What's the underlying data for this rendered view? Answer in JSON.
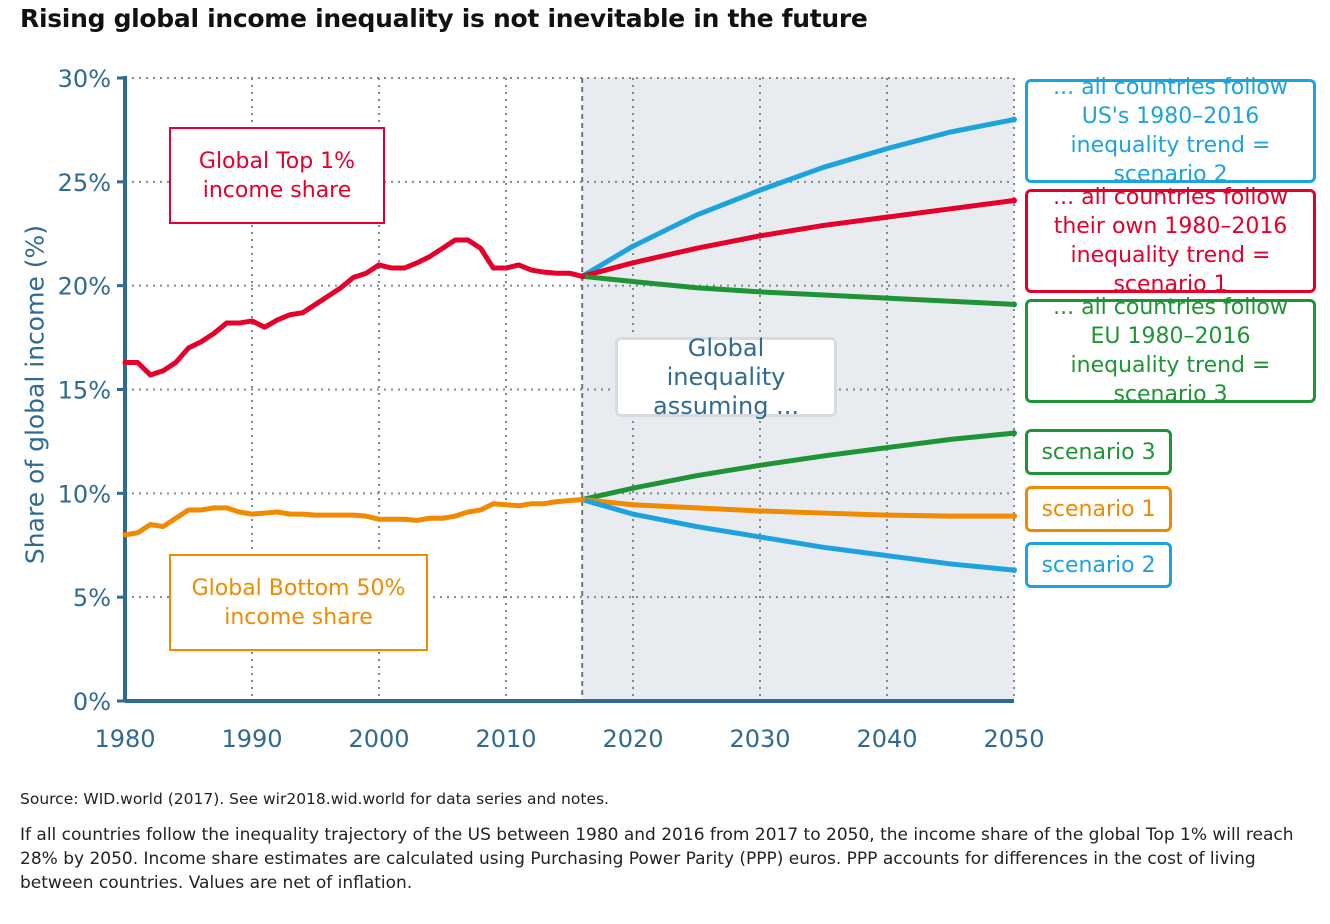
{
  "title": "Rising global income inequality is not inevitable in the future",
  "source": "Source: WID.world (2017). See wir2018.wid.world for data series and notes.",
  "note": "If all countries follow the inequality trajectory of the US between 1980 and 2016 from 2017 to 2050, the  income share of the global Top 1% will reach 28% by 2050. Income share estimates are calculated using Purchasing Power Parity (PPP) euros. PPP accounts for differences in the cost of living between countries. Values are net of inflation.",
  "labels": {
    "top1": "Global Top 1% income share",
    "bottom50": "Global Bottom 50% income share",
    "assuming": "Global inequality assuming ...",
    "us": "... all countries follow US's 1980–2016 inequality trend = scenario 2",
    "own": "... all countries follow their own 1980–2016 inequality trend = scenario 1",
    "eu": "... all countries follow EU 1980–2016 inequality trend = scenario 3",
    "s3": "scenario 3",
    "s1": "scenario 1",
    "s2": "scenario 2"
  },
  "chart_data": {
    "type": "line",
    "ylabel": "Share of global income (%)",
    "xlim": [
      1980,
      2050
    ],
    "ylim": [
      0,
      30
    ],
    "xticks": [
      "1980",
      "1990",
      "2000",
      "2010",
      "2020",
      "2030",
      "2040",
      "2050"
    ],
    "yticks": [
      "0%",
      "5%",
      "10%",
      "15%",
      "20%",
      "25%",
      "30%"
    ],
    "grid": true,
    "projection_shaded_from": 2016,
    "colors": {
      "top1": "#e4002b",
      "bottom50": "#f08a00",
      "scenario2": "#1ca3de",
      "scenario1": "#e4002b",
      "scenario3": "#1f9436",
      "axis": "#2f6a92",
      "shade": "#e8ebef"
    },
    "historical_years": [
      1980,
      1981,
      1982,
      1983,
      1984,
      1985,
      1986,
      1987,
      1988,
      1989,
      1990,
      1991,
      1992,
      1993,
      1994,
      1995,
      1996,
      1997,
      1998,
      1999,
      2000,
      2001,
      2002,
      2003,
      2004,
      2005,
      2006,
      2007,
      2008,
      2009,
      2010,
      2011,
      2012,
      2013,
      2014,
      2015,
      2016
    ],
    "series": [
      {
        "name": "Global Top 1% income share",
        "key": "top1",
        "values": [
          16.3,
          16.3,
          15.7,
          15.9,
          16.3,
          17.0,
          17.3,
          17.7,
          18.2,
          18.2,
          18.3,
          18.0,
          18.35,
          18.6,
          18.7,
          19.1,
          19.5,
          19.9,
          20.4,
          20.6,
          21.0,
          20.85,
          20.85,
          21.1,
          21.4,
          21.8,
          22.2,
          22.2,
          21.8,
          20.85,
          20.85,
          21.0,
          20.75,
          20.65,
          20.6,
          20.6,
          20.45
        ]
      },
      {
        "name": "Global Bottom 50% income share",
        "key": "bottom50",
        "values": [
          8.0,
          8.1,
          8.5,
          8.4,
          8.8,
          9.2,
          9.2,
          9.3,
          9.3,
          9.1,
          9.0,
          9.05,
          9.1,
          9.0,
          9.0,
          8.95,
          8.95,
          8.95,
          8.95,
          8.9,
          8.75,
          8.75,
          8.75,
          8.7,
          8.8,
          8.8,
          8.9,
          9.1,
          9.2,
          9.5,
          9.45,
          9.4,
          9.5,
          9.5,
          9.6,
          9.65,
          9.7
        ]
      }
    ],
    "projection_years": [
      2016,
      2020,
      2025,
      2030,
      2035,
      2040,
      2045,
      2050
    ],
    "projections": [
      {
        "key": "top1_scenario2",
        "color_key": "scenario2",
        "values": [
          20.45,
          21.9,
          23.4,
          24.6,
          25.7,
          26.6,
          27.4,
          28.0
        ]
      },
      {
        "key": "top1_scenario1",
        "color_key": "scenario1",
        "values": [
          20.45,
          21.1,
          21.8,
          22.4,
          22.9,
          23.3,
          23.7,
          24.1
        ]
      },
      {
        "key": "top1_scenario3",
        "color_key": "scenario3",
        "values": [
          20.45,
          20.2,
          19.9,
          19.7,
          19.55,
          19.4,
          19.25,
          19.1
        ]
      },
      {
        "key": "bottom50_scenario3",
        "color_key": "scenario3",
        "values": [
          9.7,
          10.25,
          10.85,
          11.35,
          11.8,
          12.2,
          12.6,
          12.9
        ]
      },
      {
        "key": "bottom50_scenario1",
        "color_key": "bottom50",
        "values": [
          9.7,
          9.45,
          9.3,
          9.15,
          9.05,
          8.95,
          8.9,
          8.9
        ]
      },
      {
        "key": "bottom50_scenario2",
        "color_key": "scenario2",
        "values": [
          9.7,
          9.0,
          8.4,
          7.9,
          7.4,
          7.0,
          6.6,
          6.3
        ]
      }
    ]
  }
}
